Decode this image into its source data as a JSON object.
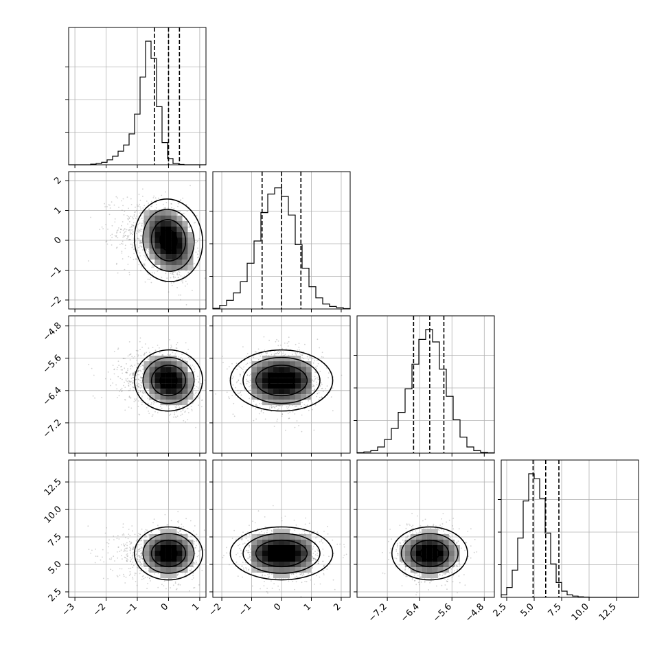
{
  "chart_data": {
    "type": "corner",
    "parameters": [
      {
        "mean": 0.0,
        "sd": 0.42,
        "skew": -1,
        "range": [
          -3.2,
          1.2
        ],
        "ticks": [
          -3,
          -2,
          -1,
          0,
          1
        ],
        "tick_labels": [
          "−3",
          "−2",
          "−1",
          "0",
          "1"
        ],
        "quantiles": [
          -0.45,
          0.0,
          0.35
        ],
        "hist_bins": [
          0,
          0,
          0,
          0,
          0.005,
          0.01,
          0.02,
          0.04,
          0.07,
          0.11,
          0.16,
          0.25,
          0.41,
          0.71,
          1.0,
          0.86,
          0.47,
          0.18,
          0.05,
          0.01,
          0.003,
          0,
          0,
          0,
          0
        ]
      },
      {
        "mean": 0.0,
        "sd": 0.66,
        "skew": 0,
        "range": [
          -2.3,
          2.3
        ],
        "ticks": [
          -2,
          -1,
          0,
          1,
          2
        ],
        "tick_labels": [
          "−2",
          "−1",
          "0",
          "1",
          "2"
        ],
        "quantiles": [
          -0.65,
          0.0,
          0.65
        ],
        "hist_bins": [
          0.005,
          0.03,
          0.07,
          0.13,
          0.22,
          0.37,
          0.55,
          0.78,
          0.93,
          0.98,
          0.91,
          0.76,
          0.52,
          0.33,
          0.18,
          0.09,
          0.04,
          0.02,
          0.01,
          0.003
        ]
      },
      {
        "mean": -6.15,
        "sd": 0.36,
        "skew": 0,
        "range": [
          -7.95,
          -4.55
        ],
        "ticks": [
          -7.2,
          -6.4,
          -5.6,
          -4.8
        ],
        "tick_labels": [
          "−7.2",
          "−6.4",
          "−5.6",
          "−4.8"
        ],
        "quantiles": [
          -6.55,
          -6.15,
          -5.8
        ],
        "hist_bins": [
          0.004,
          0.01,
          0.02,
          0.05,
          0.11,
          0.2,
          0.33,
          0.52,
          0.72,
          0.92,
          1.0,
          0.9,
          0.68,
          0.46,
          0.27,
          0.13,
          0.05,
          0.02,
          0.007,
          0.003
        ]
      },
      {
        "mean": 6.0,
        "sd": 1.15,
        "skew": 0,
        "range": [
          2.0,
          14.5
        ],
        "ticks": [
          2.5,
          5.0,
          7.5,
          10.0,
          12.5
        ],
        "tick_labels": [
          "2.5",
          "5.0",
          "7.5",
          "10.0",
          "12.5"
        ],
        "quantiles": [
          4.9,
          6.05,
          7.25
        ],
        "hist_bins": [
          0.02,
          0.08,
          0.22,
          0.48,
          0.78,
          1.0,
          0.96,
          0.8,
          0.52,
          0.27,
          0.12,
          0.05,
          0.02,
          0.01,
          0.004,
          0.002,
          0,
          0,
          0,
          0,
          0,
          0,
          0,
          0,
          0
        ]
      }
    ],
    "correlations": {
      "1-0": -0.3,
      "2-0": -0.2,
      "2-1": 0.0,
      "3-0": 0.0,
      "3-1": 0.0,
      "3-2": 0.0
    },
    "contour_levels_sigma": [
      0.5,
      1.0,
      1.5,
      2.0
    ],
    "grid": true
  }
}
